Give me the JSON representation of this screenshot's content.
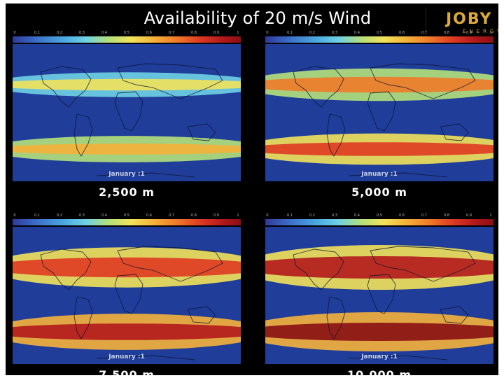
{
  "slide": {
    "title": "Availability of 20 m/s Wind",
    "logo": {
      "word": "JOBY",
      "subtitle": "ENERGY"
    }
  },
  "colorbar": {
    "ticks": [
      "0",
      "0.1",
      "0.2",
      "0.3",
      "0.4",
      "0.5",
      "0.6",
      "0.7",
      "0.8",
      "0.9",
      "1"
    ],
    "colors": [
      "#2e3a9a",
      "#3a6cc8",
      "#4aa6e0",
      "#6fd0e4",
      "#b4e07a",
      "#f2e25a",
      "#f5b13a",
      "#ef7a2a",
      "#df3a22",
      "#b2181c",
      "#8a0f14"
    ]
  },
  "panels": [
    {
      "date": "January :1",
      "altitude": "2,500 m",
      "level": 0.35
    },
    {
      "date": "January :1",
      "altitude": "5,000 m",
      "level": 0.6
    },
    {
      "date": "January :1",
      "altitude": "7,500 m",
      "level": 0.85
    },
    {
      "date": "January :1",
      "altitude": "10,000 m",
      "level": 1.0
    }
  ]
}
